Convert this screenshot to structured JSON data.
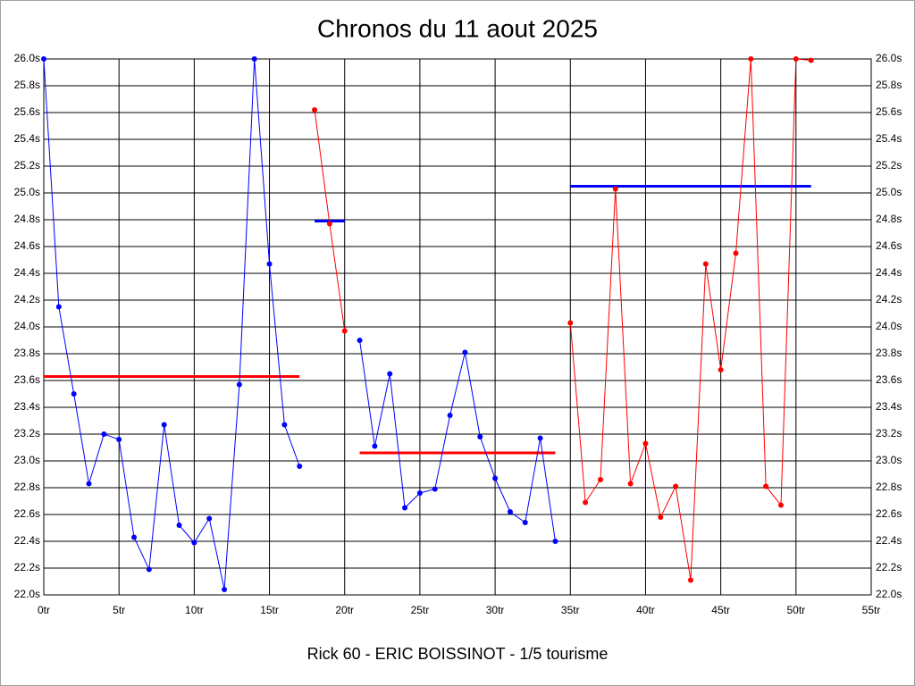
{
  "chart_data": {
    "type": "line",
    "title": "Chronos du 11 aout 2025",
    "xlabel": "Rick 60 - ERIC BOISSINOT - 1/5 tourisme",
    "xlim": [
      0,
      55
    ],
    "ylim": [
      22,
      26
    ],
    "xticks": [
      {
        "value": 0,
        "label": "0tr"
      },
      {
        "value": 5,
        "label": "5tr"
      },
      {
        "value": 10,
        "label": "10tr"
      },
      {
        "value": 15,
        "label": "15tr"
      },
      {
        "value": 20,
        "label": "20tr"
      },
      {
        "value": 25,
        "label": "25tr"
      },
      {
        "value": 30,
        "label": "30tr"
      },
      {
        "value": 35,
        "label": "35tr"
      },
      {
        "value": 40,
        "label": "40tr"
      },
      {
        "value": 45,
        "label": "45tr"
      },
      {
        "value": 50,
        "label": "50tr"
      },
      {
        "value": 55,
        "label": "55tr"
      }
    ],
    "yticks": [
      {
        "value": 22,
        "label": "22.0s"
      },
      {
        "value": 22.2,
        "label": "22.2s"
      },
      {
        "value": 22.4,
        "label": "22.4s"
      },
      {
        "value": 22.6,
        "label": "22.6s"
      },
      {
        "value": 22.8,
        "label": "22.8s"
      },
      {
        "value": 23,
        "label": "23.0s"
      },
      {
        "value": 23.2,
        "label": "23.2s"
      },
      {
        "value": 23.4,
        "label": "23.4s"
      },
      {
        "value": 23.6,
        "label": "23.6s"
      },
      {
        "value": 23.8,
        "label": "23.8s"
      },
      {
        "value": 24,
        "label": "24.0s"
      },
      {
        "value": 24.2,
        "label": "24.2s"
      },
      {
        "value": 24.4,
        "label": "24.4s"
      },
      {
        "value": 24.6,
        "label": "24.6s"
      },
      {
        "value": 24.8,
        "label": "24.8s"
      },
      {
        "value": 25,
        "label": "25.0s"
      },
      {
        "value": 25.2,
        "label": "25.2s"
      },
      {
        "value": 25.4,
        "label": "25.4s"
      },
      {
        "value": 25.6,
        "label": "25.6s"
      },
      {
        "value": 25.8,
        "label": "25.8s"
      },
      {
        "value": 26,
        "label": "26.0s"
      }
    ],
    "grid": true,
    "series": [
      {
        "color": "#0000ff",
        "x": [
          0,
          1,
          2,
          3,
          4,
          5,
          6,
          7,
          8,
          9,
          10,
          11,
          12,
          13,
          14,
          15,
          16,
          17
        ],
        "values": [
          26.0,
          24.15,
          23.5,
          22.83,
          23.2,
          23.16,
          22.43,
          22.19,
          23.27,
          22.52,
          22.39,
          22.57,
          22.04,
          23.57,
          26.0,
          24.47,
          23.27,
          22.96
        ]
      },
      {
        "color": "#ff0000",
        "x": [
          18,
          19,
          20
        ],
        "values": [
          25.62,
          24.77,
          23.97
        ]
      },
      {
        "color": "#0000ff",
        "x": [
          21,
          22,
          23,
          24,
          25,
          26,
          27,
          28,
          29,
          30,
          31,
          32,
          33,
          34
        ],
        "values": [
          23.9,
          23.11,
          23.65,
          22.65,
          22.76,
          22.79,
          23.34,
          23.81,
          23.18,
          22.87,
          22.62,
          22.54,
          23.17,
          22.4
        ]
      },
      {
        "color": "#ff0000",
        "x": [
          35,
          36,
          37,
          38,
          39,
          40,
          41,
          42,
          43,
          44,
          45,
          46,
          47,
          48,
          49,
          50,
          51
        ],
        "values": [
          24.03,
          22.69,
          22.86,
          25.03,
          22.83,
          23.13,
          22.58,
          22.81,
          22.11,
          24.47,
          23.68,
          24.55,
          26.0,
          22.81,
          22.67,
          26.0,
          25.99
        ]
      }
    ],
    "averages": [
      {
        "start": 0,
        "end": 17,
        "value": 23.63,
        "color": "#ff0000"
      },
      {
        "start": 18,
        "end": 20,
        "value": 24.79,
        "color": "#0000ff"
      },
      {
        "start": 21,
        "end": 34,
        "value": 23.06,
        "color": "#ff0000"
      },
      {
        "start": 35,
        "end": 51,
        "value": 25.05,
        "color": "#0000ff"
      }
    ]
  }
}
